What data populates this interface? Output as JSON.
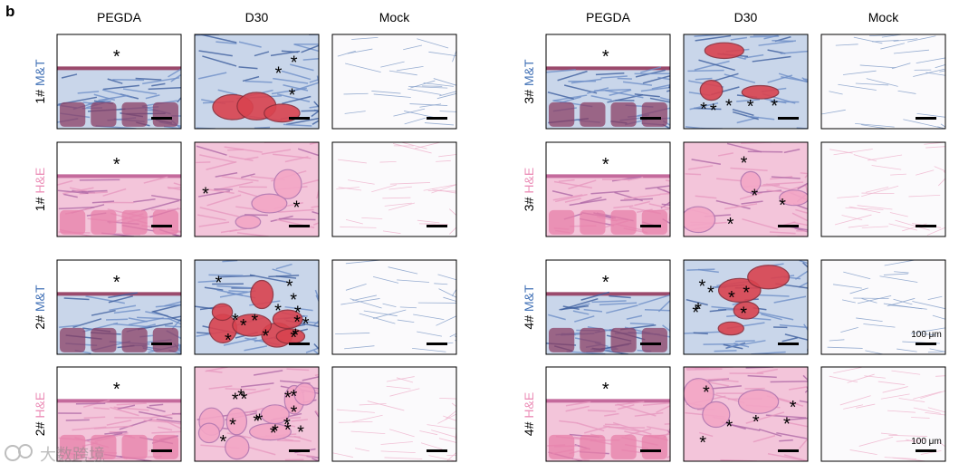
{
  "panel_label": "b",
  "groups": [
    {
      "columns": [
        "PEGDA",
        "D30",
        "Mock"
      ],
      "rows": [
        {
          "sample": "1#",
          "stain": "M&T",
          "cells": [
            {
              "markers": [
                "*"
              ]
            },
            {
              "markers": [
                "*",
                "*",
                "*"
              ]
            },
            {
              "markers": []
            }
          ]
        },
        {
          "sample": "1#",
          "stain": "H&E",
          "cells": [
            {
              "markers": [
                "*"
              ]
            },
            {
              "markers": [
                "*",
                "*"
              ]
            },
            {
              "markers": []
            }
          ]
        },
        {
          "sample": "2#",
          "stain": "M&T",
          "cells": [
            {
              "markers": [
                "*"
              ]
            },
            {
              "markers": [
                "*",
                "*",
                "*",
                "*",
                "*",
                "*",
                "*",
                "*",
                "*",
                "*",
                "*",
                "*",
                "*",
                "*"
              ]
            },
            {
              "markers": []
            }
          ]
        },
        {
          "sample": "2#",
          "stain": "H&E",
          "cells": [
            {
              "markers": [
                "*"
              ]
            },
            {
              "markers": [
                "*",
                "*",
                "*",
                "*",
                "*",
                "*",
                "*",
                "*",
                "*",
                "*",
                "*",
                "*",
                "*",
                "*",
                "*"
              ]
            },
            {
              "markers": []
            }
          ]
        }
      ]
    },
    {
      "columns": [
        "PEGDA",
        "D30",
        "Mock"
      ],
      "rows": [
        {
          "sample": "3#",
          "stain": "M&T",
          "cells": [
            {
              "markers": [
                "*"
              ]
            },
            {
              "markers": [
                "*",
                "*",
                "*",
                "*",
                "*"
              ]
            },
            {
              "markers": []
            }
          ]
        },
        {
          "sample": "3#",
          "stain": "H&E",
          "cells": [
            {
              "markers": [
                "*"
              ]
            },
            {
              "markers": [
                "*",
                "*",
                "*",
                "*"
              ]
            },
            {
              "markers": []
            }
          ]
        },
        {
          "sample": "4#",
          "stain": "M&T",
          "cells": [
            {
              "markers": [
                "*"
              ]
            },
            {
              "markers": [
                "*",
                "*",
                "*",
                "*",
                "*",
                "*",
                "*"
              ]
            },
            {
              "markers": [],
              "scale_label": "100 μm"
            }
          ]
        },
        {
          "sample": "4#",
          "stain": "H&E",
          "cells": [
            {
              "markers": [
                "*"
              ]
            },
            {
              "markers": [
                "*",
                "*",
                "*",
                "*",
                "*",
                "*"
              ]
            },
            {
              "markers": [],
              "scale_label": "100 μm"
            }
          ]
        }
      ]
    }
  ],
  "watermark": "大数跨境"
}
